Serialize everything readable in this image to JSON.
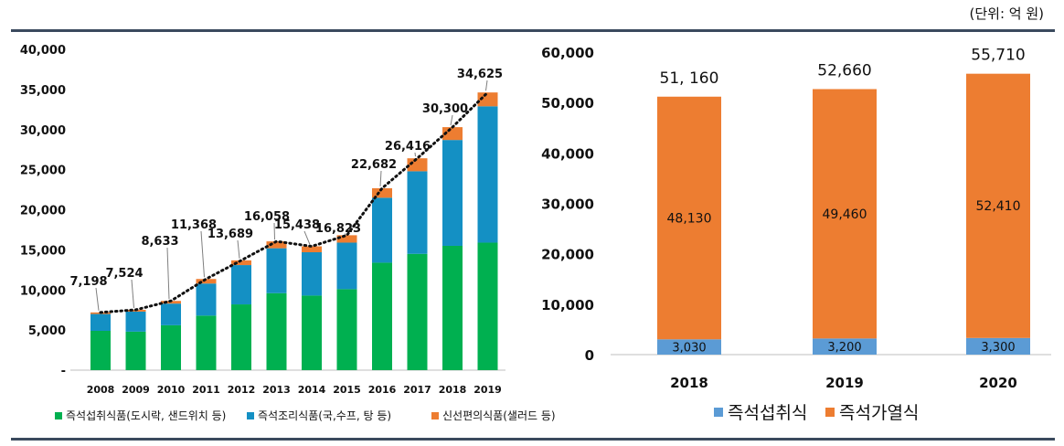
{
  "unit_note": "(단위: 억 원)",
  "colors": {
    "green": "#00b050",
    "blue": "#1490c4",
    "orange": "#ed7d31",
    "blue_right": "#5b9bd5"
  },
  "chart_data": [
    {
      "type": "bar",
      "stacked": true,
      "categories": [
        "2008",
        "2009",
        "2010",
        "2011",
        "2012",
        "2013",
        "2014",
        "2015",
        "2016",
        "2017",
        "2018",
        "2019"
      ],
      "series": [
        {
          "name": "즉석섭취식품(도시락, 샌드위치 등)",
          "values": [
            4900,
            4800,
            5600,
            6800,
            8200,
            9600,
            9300,
            10100,
            13400,
            14500,
            15500,
            15900
          ]
        },
        {
          "name": "즉석조리식품(국,수프, 탕 등)",
          "values": [
            2100,
            2500,
            2700,
            4000,
            4900,
            5600,
            5400,
            5800,
            8100,
            10300,
            13200,
            17000
          ]
        },
        {
          "name": "신선편의식품(샐러드 등)",
          "values": [
            198,
            224,
            333,
            568,
            589,
            858,
            738,
            923,
            1182,
            1616,
            1600,
            1725
          ]
        }
      ],
      "totals": [
        7198,
        7524,
        8633,
        11368,
        13689,
        16058,
        15438,
        16823,
        22682,
        26416,
        30300,
        34625
      ],
      "total_labels": [
        "7,198",
        "7,524",
        "8,633",
        "11,368",
        "13,689",
        "16,058",
        "15,438",
        "16,823",
        "22,682",
        "26,416",
        "30,300",
        "34,625"
      ],
      "trend_line": "dotted",
      "ylim": [
        0,
        40000
      ],
      "yticks": [
        "-",
        "5,000",
        "10,000",
        "15,000",
        "20,000",
        "25,000",
        "30,000",
        "35,000",
        "40,000"
      ],
      "legend_position": "bottom",
      "grid": false
    },
    {
      "type": "bar",
      "stacked": true,
      "categories": [
        "2018",
        "2019",
        "2020"
      ],
      "series": [
        {
          "name": "즉석섭취식",
          "values": [
            3030,
            3200,
            3300
          ],
          "labels": [
            "3,030",
            "3,200",
            "3,300"
          ]
        },
        {
          "name": "즉석가열식",
          "values": [
            48130,
            49460,
            52410
          ],
          "labels": [
            "48,130",
            "49,460",
            "52,410"
          ]
        }
      ],
      "totals": [
        51160,
        52660,
        55710
      ],
      "total_labels": [
        "51, 160",
        "52,660",
        "55,710"
      ],
      "ylim": [
        0,
        60000
      ],
      "yticks": [
        "0",
        "10,000",
        "20,000",
        "30,000",
        "40,000",
        "50,000",
        "60,000"
      ],
      "legend_position": "bottom",
      "grid": false
    }
  ]
}
